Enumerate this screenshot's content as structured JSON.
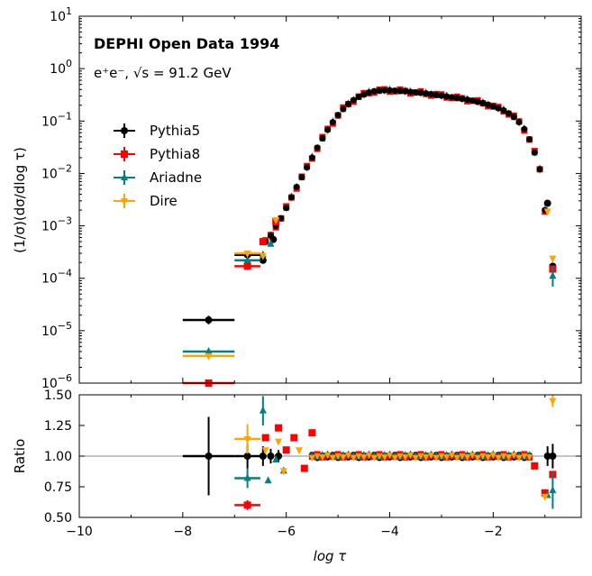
{
  "chart_data": [
    {
      "type": "scatter",
      "panel": "main",
      "xlim": [
        -10,
        -0.3
      ],
      "ylim_log10": [
        -6,
        1
      ],
      "yscale": "log",
      "ylabel": "(1/σ)(dσ/dlog τ)",
      "title_annotation": "DEPHI Open Data 1994",
      "subtitle_annotation": "e⁺e⁻, √s = 91.2 GeV",
      "x_ticks": [
        -10,
        -8,
        -6,
        -4,
        -2
      ],
      "y_tick_labels": [
        {
          "exp": 1,
          "base": "10",
          "sup": "1"
        },
        {
          "exp": 0,
          "base": "10",
          "sup": "0"
        },
        {
          "exp": -1,
          "base": "10",
          "sup": "−1"
        },
        {
          "exp": -2,
          "base": "10",
          "sup": "−2"
        },
        {
          "exp": -3,
          "base": "10",
          "sup": "−3"
        },
        {
          "exp": -4,
          "base": "10",
          "sup": "−4"
        },
        {
          "exp": -5,
          "base": "10",
          "sup": "−5"
        },
        {
          "exp": -6,
          "base": "10",
          "sup": "−6"
        }
      ],
      "legend": [
        "Pythia5",
        "Pythia8",
        "Ariadne",
        "Dire"
      ],
      "legend_position": "center-left",
      "curve_x": [
        -6.4,
        -6.3,
        -6.2,
        -6.1,
        -6.0,
        -5.9,
        -5.8,
        -5.7,
        -5.6,
        -5.5,
        -5.4,
        -5.3,
        -5.2,
        -5.1,
        -5.0,
        -4.9,
        -4.8,
        -4.7,
        -4.6,
        -4.5,
        -4.4,
        -4.3,
        -4.2,
        -4.1,
        -4.0,
        -3.9,
        -3.8,
        -3.7,
        -3.6,
        -3.5,
        -3.4,
        -3.3,
        -3.2,
        -3.1,
        -3.0,
        -2.9,
        -2.8,
        -2.7,
        -2.6,
        -2.5,
        -2.4,
        -2.3,
        -2.2,
        -2.1,
        -2.0,
        -1.9,
        -1.8,
        -1.7,
        -1.6,
        -1.5,
        -1.4,
        -1.3,
        -1.2,
        -1.1,
        -1.0
      ],
      "curve_y": [
        0.0005,
        0.00065,
        0.001,
        0.0014,
        0.0022,
        0.0035,
        0.0055,
        0.0085,
        0.013,
        0.02,
        0.031,
        0.047,
        0.068,
        0.095,
        0.13,
        0.17,
        0.21,
        0.25,
        0.29,
        0.32,
        0.35,
        0.37,
        0.38,
        0.385,
        0.385,
        0.38,
        0.375,
        0.37,
        0.36,
        0.35,
        0.345,
        0.335,
        0.325,
        0.315,
        0.305,
        0.295,
        0.285,
        0.275,
        0.265,
        0.255,
        0.245,
        0.232,
        0.22,
        0.205,
        0.19,
        0.175,
        0.16,
        0.14,
        0.12,
        0.095,
        0.07,
        0.045,
        0.025,
        0.012,
        0.002
      ],
      "series": [
        {
          "name": "Pythia5",
          "color": "#000000",
          "marker": "circle",
          "points": [
            {
              "x": -7.5,
              "y": 1.6e-05,
              "xerr": 0.5,
              "yerr_log": 0.08
            },
            {
              "x": -6.75,
              "y": 0.00028,
              "xerr": 0.25
            },
            {
              "x": -6.45,
              "y": 0.00022
            },
            {
              "x": -6.25,
              "y": 0.00055
            },
            {
              "x": -0.95,
              "y": 0.0027
            },
            {
              "x": -0.85,
              "y": 0.00017
            }
          ]
        },
        {
          "name": "Pythia8",
          "color": "#ff0000",
          "marker": "square",
          "points": [
            {
              "x": -7.5,
              "y": 1e-06,
              "xerr": 0.5
            },
            {
              "x": -6.75,
              "y": 0.00017,
              "xerr": 0.25
            },
            {
              "x": -6.45,
              "y": 0.0005
            },
            {
              "x": -6.2,
              "y": 0.0012
            },
            {
              "x": -0.85,
              "y": 0.00015
            }
          ]
        },
        {
          "name": "Ariadne",
          "color": "#008080",
          "marker": "triangle-up",
          "points": [
            {
              "x": -7.5,
              "y": 4e-06,
              "xerr": 0.5
            },
            {
              "x": -6.75,
              "y": 0.00022,
              "xerr": 0.25
            },
            {
              "x": -6.45,
              "y": 0.00028
            },
            {
              "x": -6.3,
              "y": 0.00045
            },
            {
              "x": -0.85,
              "y": 0.00011,
              "yerr_log": 0.2
            }
          ]
        },
        {
          "name": "Dire",
          "color": "#ffa500",
          "marker": "triangle-down",
          "points": [
            {
              "x": -7.5,
              "y": 3.3e-06,
              "xerr": 0.5
            },
            {
              "x": -6.75,
              "y": 0.0003,
              "xerr": 0.25
            },
            {
              "x": -6.45,
              "y": 0.00027
            },
            {
              "x": -6.2,
              "y": 0.0013
            },
            {
              "x": -0.95,
              "y": 0.0019
            },
            {
              "x": -0.85,
              "y": 0.00024
            }
          ]
        }
      ]
    },
    {
      "type": "scatter",
      "panel": "ratio",
      "xlabel": "log τ",
      "ylabel": "Ratio",
      "xlim": [
        -10,
        -0.3
      ],
      "ylim": [
        0.5,
        1.5
      ],
      "x_ticks": [
        -10,
        -8,
        -6,
        -4,
        -2
      ],
      "y_ticks": [
        0.5,
        0.75,
        1.0,
        1.25,
        1.5
      ],
      "x_tick_labels": [
        "−10",
        "−8",
        "−6",
        "−4",
        "−2"
      ],
      "y_tick_labels": [
        "0.50",
        "0.75",
        "1.00",
        "1.25",
        "1.50"
      ],
      "reference_line": 1.0,
      "series": [
        {
          "name": "Pythia5",
          "color": "#000000",
          "marker": "circle",
          "points": [
            {
              "x": -7.5,
              "y": 1.0,
              "xerr": 0.5,
              "yerr": 0.32
            },
            {
              "x": -6.75,
              "y": 1.0,
              "xerr": 0.25,
              "yerr": 0.1
            },
            {
              "x": -6.45,
              "y": 1.0,
              "yerr": 0.08
            },
            {
              "x": -6.3,
              "y": 1.0,
              "yerr": 0.06
            },
            {
              "x": -6.15,
              "y": 1.0,
              "yerr": 0.05
            },
            {
              "x": -0.95,
              "y": 1.0,
              "yerr": 0.08
            },
            {
              "x": -0.85,
              "y": 1.0,
              "yerr": 0.1
            }
          ]
        },
        {
          "name": "Pythia8",
          "color": "#ff0000",
          "marker": "square",
          "points": [
            {
              "x": -6.75,
              "y": 0.6,
              "xerr": 0.25,
              "yerr": 0.04
            },
            {
              "x": -6.4,
              "y": 1.15
            },
            {
              "x": -6.15,
              "y": 1.23
            },
            {
              "x": -6.0,
              "y": 1.05
            },
            {
              "x": -5.85,
              "y": 1.15
            },
            {
              "x": -5.65,
              "y": 0.9
            },
            {
              "x": -5.5,
              "y": 1.19
            },
            {
              "x": -1.2,
              "y": 0.92
            },
            {
              "x": -1.0,
              "y": 0.7
            },
            {
              "x": -0.85,
              "y": 0.85
            }
          ]
        },
        {
          "name": "Ariadne",
          "color": "#008080",
          "marker": "triangle-up",
          "points": [
            {
              "x": -6.75,
              "y": 0.82,
              "xerr": 0.25,
              "yerr": 0.08
            },
            {
              "x": -6.45,
              "y": 1.37,
              "yerr": 0.12
            },
            {
              "x": -6.35,
              "y": 0.8
            },
            {
              "x": -6.2,
              "y": 0.97
            },
            {
              "x": -6.05,
              "y": 0.88
            },
            {
              "x": -0.95,
              "y": 0.68
            },
            {
              "x": -0.85,
              "y": 0.72,
              "yerr": 0.15
            }
          ]
        },
        {
          "name": "Dire",
          "color": "#ffa500",
          "marker": "triangle-down",
          "points": [
            {
              "x": -6.75,
              "y": 1.14,
              "xerr": 0.25,
              "yerr": 0.12
            },
            {
              "x": -6.4,
              "y": 1.05
            },
            {
              "x": -6.15,
              "y": 1.12
            },
            {
              "x": -6.05,
              "y": 0.88
            },
            {
              "x": -5.75,
              "y": 1.05
            },
            {
              "x": -1.0,
              "y": 0.67
            },
            {
              "x": -0.85,
              "y": 1.45,
              "yerr": 0.05
            }
          ]
        }
      ],
      "dense_x": [
        -5.5,
        -5.4,
        -5.3,
        -5.2,
        -5.1,
        -5.0,
        -4.9,
        -4.8,
        -4.7,
        -4.6,
        -4.5,
        -4.4,
        -4.3,
        -4.2,
        -4.1,
        -4.0,
        -3.9,
        -3.8,
        -3.7,
        -3.6,
        -3.5,
        -3.4,
        -3.3,
        -3.2,
        -3.1,
        -3.0,
        -2.9,
        -2.8,
        -2.7,
        -2.6,
        -2.5,
        -2.4,
        -2.3,
        -2.2,
        -2.1,
        -2.0,
        -1.9,
        -1.8,
        -1.7,
        -1.6,
        -1.5,
        -1.4,
        -1.3
      ],
      "dense_offsets": [
        [
          0.02,
          -0.03,
          0.01,
          -0.02
        ],
        [
          -0.01,
          0.03,
          -0.02,
          0.01
        ],
        [
          0.01,
          -0.02,
          0.02,
          0.03
        ],
        [
          -0.02,
          0.01,
          -0.01,
          0.02
        ]
      ]
    }
  ]
}
